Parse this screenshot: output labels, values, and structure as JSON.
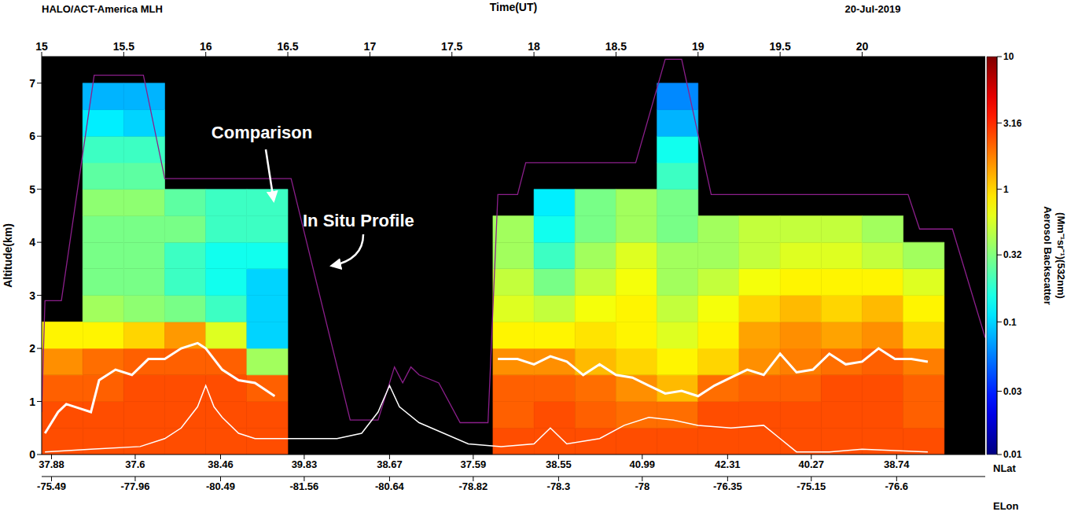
{
  "chart_data": {
    "type": "heatmap",
    "title": "HALO/ACT-America MLH",
    "date": "20-Jul-2019",
    "x_label": "Time(UT)",
    "y_label": "Altitude(km)",
    "xlim": [
      15,
      20.75
    ],
    "xticks": [
      15,
      15.5,
      16,
      16.5,
      17,
      17.5,
      18,
      18.5,
      19,
      19.5,
      20
    ],
    "ylim": [
      0,
      7.5
    ],
    "yticks": [
      0,
      1,
      2,
      3,
      4,
      5,
      6,
      7
    ],
    "lat_label": "NLat",
    "lat_ticks": [
      {
        "value": 15.06,
        "label": "37.88"
      },
      {
        "value": 15.57,
        "label": "37.6"
      },
      {
        "value": 16.09,
        "label": "38.46"
      },
      {
        "value": 16.6,
        "label": "39.83"
      },
      {
        "value": 17.12,
        "label": "38.67"
      },
      {
        "value": 17.63,
        "label": "37.59"
      },
      {
        "value": 18.15,
        "label": "38.55"
      },
      {
        "value": 18.66,
        "label": "40.99"
      },
      {
        "value": 19.18,
        "label": "42.31"
      },
      {
        "value": 19.69,
        "label": "40.27"
      },
      {
        "value": 20.21,
        "label": "38.74"
      }
    ],
    "lon_label": "ELon",
    "lon_ticks": [
      {
        "value": 15.06,
        "label": "-75.49"
      },
      {
        "value": 15.57,
        "label": "-77.96"
      },
      {
        "value": 16.09,
        "label": "-80.49"
      },
      {
        "value": 16.6,
        "label": "-81.56"
      },
      {
        "value": 17.12,
        "label": "-80.64"
      },
      {
        "value": 17.63,
        "label": "-78.82"
      },
      {
        "value": 18.15,
        "label": "-78.3"
      },
      {
        "value": 18.66,
        "label": "-78"
      },
      {
        "value": 19.18,
        "label": "-76.35"
      },
      {
        "value": 19.69,
        "label": "-75.15"
      },
      {
        "value": 20.21,
        "label": "-76.6"
      }
    ],
    "annotations": [
      "Comparison",
      "In Situ Profile"
    ],
    "cells": {
      "x_edges": [
        15,
        15.25,
        15.5,
        15.75,
        16,
        16.25,
        16.5,
        16.75,
        17,
        17.25,
        17.5,
        17.75,
        18,
        18.25,
        18.5,
        18.75,
        19,
        19.25,
        19.5,
        19.75,
        20,
        20.25,
        20.5,
        20.75
      ],
      "y_edges": [
        0,
        0.5,
        1,
        1.5,
        2,
        2.5,
        3,
        3.5,
        4,
        4.5,
        5,
        5.5,
        6,
        6.5,
        7,
        7.5
      ],
      "values": [
        [
          2.5,
          2.5,
          2.5,
          2.5,
          2.5,
          2.5,
          null,
          null,
          null,
          null,
          null,
          2.5,
          2.5,
          2.5,
          2.5,
          2.5,
          2.5,
          2.5,
          2.5,
          2.5,
          2.5,
          2.5,
          null
        ],
        [
          2.5,
          2.5,
          2.5,
          2.5,
          2.5,
          2.5,
          null,
          null,
          null,
          null,
          null,
          2.2,
          2.5,
          2.2,
          2,
          2,
          2.5,
          2.5,
          2.5,
          2.5,
          2.5,
          2.2,
          null
        ],
        [
          2.2,
          2.2,
          2.5,
          2.5,
          2.5,
          2.2,
          null,
          null,
          null,
          null,
          null,
          2.2,
          2.2,
          2,
          1.6,
          1.2,
          2,
          2.2,
          2.2,
          2.5,
          2.5,
          2.2,
          null
        ],
        [
          1.6,
          2,
          2.2,
          2.2,
          2.2,
          0.4,
          null,
          null,
          null,
          null,
          null,
          1.6,
          1.6,
          1.2,
          1,
          0.8,
          1,
          1.6,
          1.8,
          2,
          2.2,
          1.8,
          null
        ],
        [
          0.8,
          0.8,
          1,
          1.5,
          0.6,
          0.1,
          null,
          null,
          null,
          null,
          null,
          0.8,
          0.8,
          0.9,
          0.8,
          0.6,
          0.8,
          1.4,
          1.6,
          1.4,
          1.6,
          1,
          null
        ],
        [
          null,
          0.4,
          0.35,
          0.3,
          0.2,
          0.1,
          null,
          null,
          null,
          null,
          null,
          0.6,
          0.5,
          0.7,
          0.8,
          0.5,
          0.7,
          1,
          1.2,
          1,
          1.2,
          0.8,
          null
        ],
        [
          null,
          0.3,
          0.3,
          0.2,
          0.15,
          0.1,
          null,
          null,
          null,
          null,
          null,
          0.5,
          0.3,
          0.5,
          0.7,
          0.4,
          0.5,
          0.7,
          0.8,
          0.8,
          0.8,
          0.6,
          null
        ],
        [
          null,
          0.3,
          0.3,
          0.2,
          0.15,
          0.15,
          null,
          null,
          null,
          null,
          null,
          0.4,
          0.2,
          0.4,
          0.6,
          0.4,
          0.4,
          0.5,
          0.6,
          0.6,
          0.5,
          0.4,
          null
        ],
        [
          null,
          0.3,
          0.3,
          0.3,
          0.2,
          0.2,
          null,
          null,
          null,
          null,
          null,
          0.4,
          0.15,
          0.3,
          0.4,
          0.3,
          0.4,
          0.5,
          0.5,
          0.5,
          0.4,
          null,
          null
        ],
        [
          null,
          0.35,
          0.35,
          0.25,
          0.2,
          0.2,
          null,
          null,
          null,
          null,
          null,
          null,
          0.12,
          0.3,
          0.4,
          0.3,
          null,
          null,
          null,
          null,
          null,
          null,
          null
        ],
        [
          null,
          0.25,
          0.25,
          null,
          null,
          null,
          null,
          null,
          null,
          null,
          null,
          null,
          null,
          null,
          null,
          0.2,
          null,
          null,
          null,
          null,
          null,
          null,
          null
        ],
        [
          null,
          0.2,
          0.2,
          null,
          null,
          null,
          null,
          null,
          null,
          null,
          null,
          null,
          null,
          null,
          null,
          0.15,
          null,
          null,
          null,
          null,
          null,
          null,
          null
        ],
        [
          null,
          0.12,
          0.1,
          null,
          null,
          null,
          null,
          null,
          null,
          null,
          null,
          null,
          null,
          null,
          null,
          0.08,
          null,
          null,
          null,
          null,
          null,
          null,
          null
        ],
        [
          null,
          0.08,
          0.08,
          null,
          null,
          null,
          null,
          null,
          null,
          null,
          null,
          null,
          null,
          null,
          null,
          0.06,
          null,
          null,
          null,
          null,
          null,
          null,
          null
        ],
        [
          null,
          null,
          null,
          null,
          null,
          null,
          null,
          null,
          null,
          null,
          null,
          null,
          null,
          null,
          null,
          null,
          null,
          null,
          null,
          null,
          null,
          null,
          null
        ]
      ]
    },
    "colorbar": {
      "label": "Aerosol Backscatter (Mm⁻¹sr⁻¹)(532nm)",
      "range": [
        0.01,
        10
      ],
      "ticks": [
        0.01,
        0.03,
        0.1,
        0.32,
        1,
        3.16,
        10
      ],
      "log": true
    },
    "lines": [
      {
        "color": "#8b1f8b",
        "x": [
          15,
          15.02,
          15.12,
          15.32,
          15.62,
          15.75,
          16.52,
          16.88,
          17.05,
          17.15,
          17.2,
          17.25,
          17.3,
          17.42,
          17.55,
          17.72,
          17.78,
          17.9,
          17.95,
          18.62,
          18.8,
          18.9,
          19.08,
          20.28,
          20.35,
          20.55,
          20.75
        ],
        "values": [
          0.8,
          2.9,
          2.9,
          7.15,
          7.15,
          5.2,
          5.2,
          0.65,
          0.65,
          1.65,
          1.35,
          1.65,
          1.5,
          1.35,
          0.6,
          0.6,
          4.9,
          4.9,
          5.5,
          5.5,
          7.45,
          7.45,
          4.9,
          4.9,
          4.25,
          4.25,
          2.2
        ]
      },
      {
        "color": "#ffffff",
        "x": [
          15.02,
          15.1,
          15.15,
          15.25,
          15.3,
          15.35,
          15.45,
          15.55,
          15.65,
          15.75,
          15.85,
          15.95,
          16,
          16.1,
          16.2,
          16.3,
          16.42,
          17.1,
          17.78,
          17.9,
          18,
          18.1,
          18.2,
          18.3,
          18.4,
          18.5,
          18.6,
          18.7,
          18.8,
          18.9,
          19,
          19.1,
          19.2,
          19.3,
          19.4,
          19.5,
          19.6,
          19.7,
          19.8,
          19.9,
          20,
          20.1,
          20.2,
          20.3,
          20.4
        ],
        "values": [
          0.4,
          0.8,
          0.95,
          0.85,
          0.8,
          1.4,
          1.6,
          1.5,
          1.8,
          1.8,
          2,
          2.1,
          2,
          1.6,
          1.4,
          1.35,
          1.1,
          null,
          1.8,
          1.8,
          1.7,
          1.85,
          1.75,
          1.5,
          1.7,
          1.5,
          1.45,
          1.3,
          1.15,
          1.2,
          1.1,
          1.3,
          1.45,
          1.6,
          1.5,
          1.9,
          1.55,
          1.6,
          1.9,
          1.7,
          1.75,
          2,
          1.8,
          1.8,
          1.75
        ]
      },
      {
        "color": "#ffffff",
        "x": [
          15.02,
          15.3,
          15.6,
          15.75,
          15.85,
          15.95,
          16,
          16.05,
          16.1,
          16.2,
          16.3,
          16.5,
          16.8,
          16.95,
          17.05,
          17.12,
          17.18,
          17.3,
          17.45,
          17.6,
          17.8,
          18,
          18.1,
          18.2,
          18.4,
          18.55,
          18.7,
          18.85,
          19,
          19.2,
          19.4,
          19.5,
          19.6,
          19.8,
          20,
          20.4
        ],
        "values": [
          0.05,
          0.1,
          0.15,
          0.3,
          0.5,
          0.9,
          1.3,
          0.9,
          0.7,
          0.4,
          0.3,
          0.3,
          0.3,
          0.4,
          0.8,
          1.3,
          0.9,
          0.6,
          0.4,
          0.2,
          0.15,
          0.2,
          0.5,
          0.2,
          0.3,
          0.55,
          0.7,
          0.65,
          0.55,
          0.5,
          0.55,
          0.3,
          0.05,
          0.05,
          0.1,
          0.05
        ]
      }
    ]
  }
}
